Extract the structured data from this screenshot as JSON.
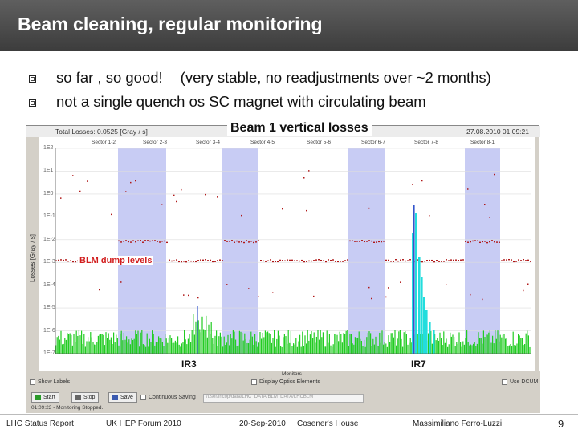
{
  "slide": {
    "title": "Beam cleaning, regular monitoring",
    "bullets": [
      {
        "main": "so far , so good!",
        "aside": "(very stable, no readjustments over ~2 months)"
      },
      {
        "main": "not a single quench os SC magnet with circulating beam",
        "aside": ""
      }
    ]
  },
  "monitor": {
    "plot_title": "Beam 1 vertical losses",
    "total_losses": "Total Losses: 0.0525 [Gray / s]",
    "date": "27.08.2010 01:09:21",
    "y_axis_label": "Losses [Gray / s]",
    "y_ticks": [
      "1E2",
      "1E1",
      "1E0",
      "1E-1",
      "1E-2",
      "1E-3",
      "1E-4",
      "1E-5",
      "1E-6",
      "1E-7"
    ],
    "sectors": [
      "Sector 1-2",
      "Sector 2-3",
      "Sector 3-4",
      "Sector 4-5",
      "Sector 5-6",
      "Sector 6-7",
      "Sector 7-8",
      "Sector 8-1"
    ],
    "x_axis_label": "Monitors",
    "annotations": {
      "blm": "BLM dump levels",
      "ir3": "IR3",
      "ir7": "IR7"
    },
    "controls": {
      "show_labels": "Show Labels",
      "display_optics": "Display Optics Elements",
      "use_dcum": "Use DCUM",
      "start": "Start",
      "stop": "Stop",
      "save": "Save",
      "continuous_saving": "Continuous Saving",
      "save_path": "/user/lhcop/data/LHC_DATA/BLM_DATA/LHCBLM",
      "status": "01:09:23 - Monitoring Stopped."
    },
    "colors": {
      "loss_bars": "#22cc22",
      "threshold": "#b01818",
      "arc_shade": "#c8ccf4",
      "peaks": "#22dddd"
    }
  },
  "footer": {
    "left": "LHC Status Report",
    "event": "UK HEP Forum 2010",
    "date": "20-Sep-2010",
    "venue": "Cosener's House",
    "author": "Massimiliano Ferro-Luzzi",
    "page": "9"
  }
}
